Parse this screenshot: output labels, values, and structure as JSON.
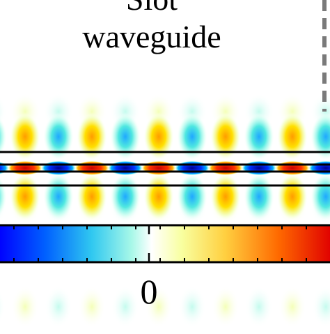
{
  "title": {
    "line1": "Slot",
    "line2": "waveguide"
  },
  "colorbar": {
    "tick_label_center": "0",
    "colormap": "jet",
    "colors": [
      "#0000ff",
      "#0080ff",
      "#40e0d0",
      "#c8fff0",
      "#ffffff",
      "#ffff80",
      "#ffc000",
      "#ff6000",
      "#e00000"
    ]
  },
  "field_map": {
    "description_free": true,
    "lobe_count_visible": 10,
    "waveguide_outline_color": "#000000"
  }
}
